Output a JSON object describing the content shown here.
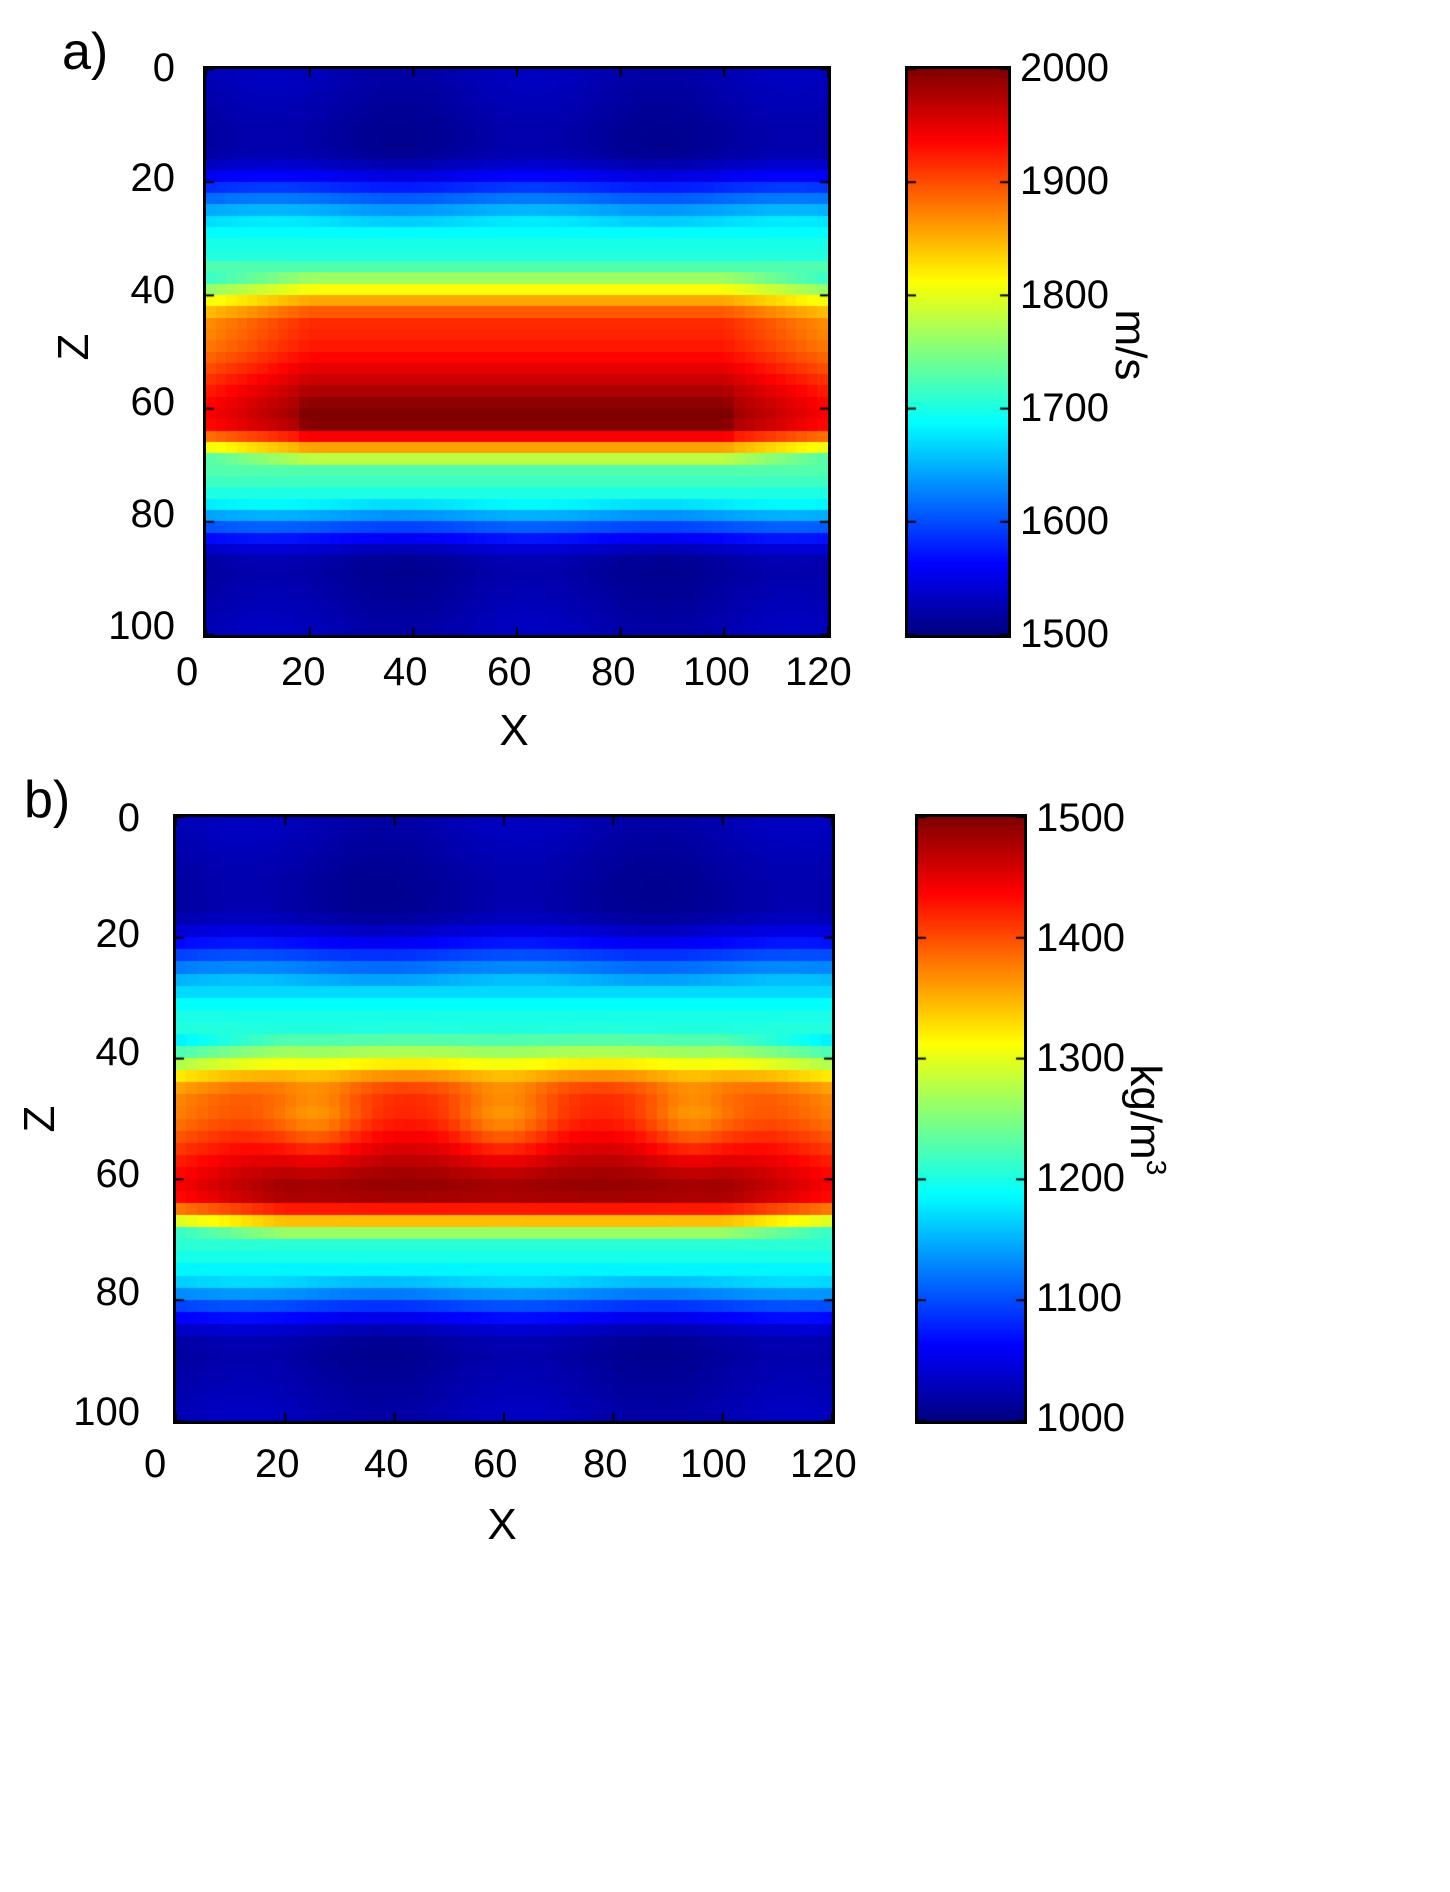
{
  "chart_data": [
    {
      "panel_label": "a)",
      "type": "heatmap",
      "xlabel": "X",
      "ylabel": "Z",
      "x_ticks": [
        "0",
        "20",
        "40",
        "60",
        "80",
        "100",
        "120"
      ],
      "y_ticks": [
        "0",
        "20",
        "40",
        "60",
        "80",
        "100"
      ],
      "xlim": [
        0,
        120
      ],
      "ylim": [
        0,
        100
      ],
      "y_axis": "reversed",
      "colorbar": {
        "label": "m/s",
        "ticks": [
          "2000",
          "1900",
          "1800",
          "1700",
          "1600",
          "1500"
        ],
        "range": [
          1500,
          2000
        ],
        "colormap": "jet"
      },
      "layer_structure": [
        {
          "z_range": [
            0,
            28
          ],
          "value": 1520
        },
        {
          "z_range": [
            28,
            36
          ],
          "value": 1700,
          "note": "transition"
        },
        {
          "z_range": [
            36,
            56
          ],
          "value": 1920
        },
        {
          "z_range": [
            56,
            68
          ],
          "value": 1990
        },
        {
          "z_range": [
            68,
            76
          ],
          "value": 1720,
          "note": "transition"
        },
        {
          "z_range": [
            76,
            100
          ],
          "value": 1520
        }
      ]
    },
    {
      "panel_label": "b)",
      "type": "heatmap",
      "xlabel": "X",
      "ylabel": "Z",
      "x_ticks": [
        "0",
        "20",
        "40",
        "60",
        "80",
        "100",
        "120"
      ],
      "y_ticks": [
        "0",
        "20",
        "40",
        "60",
        "80",
        "100"
      ],
      "xlim": [
        0,
        120
      ],
      "ylim": [
        0,
        100
      ],
      "y_axis": "reversed",
      "colorbar": {
        "label": "kg/m",
        "label_superscript": "3",
        "ticks": [
          "1500",
          "1400",
          "1300",
          "1200",
          "1100",
          "1000"
        ],
        "range": [
          1000,
          1500
        ],
        "colormap": "jet"
      },
      "layer_structure": [
        {
          "z_range": [
            0,
            30
          ],
          "value": 1020
        },
        {
          "z_range": [
            30,
            38
          ],
          "value": 1200,
          "note": "transition"
        },
        {
          "z_range": [
            38,
            56
          ],
          "value": 1420
        },
        {
          "z_range": [
            56,
            68
          ],
          "value": 1490
        },
        {
          "z_range": [
            68,
            76
          ],
          "value": 1200,
          "note": "transition"
        },
        {
          "z_range": [
            76,
            100
          ],
          "value": 1020
        }
      ]
    }
  ]
}
